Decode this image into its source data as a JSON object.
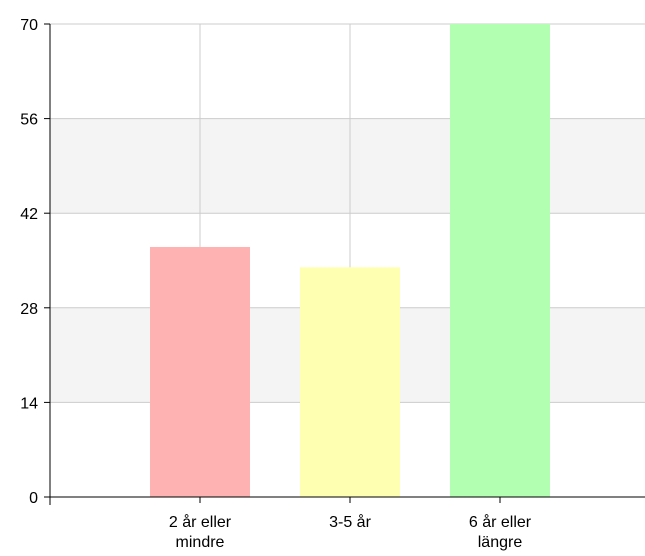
{
  "chart_data": {
    "type": "bar",
    "title": "",
    "xlabel": "",
    "ylabel": "",
    "categories": [
      [
        "2 år eller",
        "mindre"
      ],
      [
        "3-5 år"
      ],
      [
        "6 år eller",
        "längre"
      ]
    ],
    "values": [
      37,
      34,
      70
    ],
    "colors": [
      "#ffb2b2",
      "#ffffb2",
      "#b2ffb2"
    ],
    "ylim": [
      0,
      70
    ],
    "yticks": [
      "0",
      "14",
      "28",
      "42",
      "56",
      "70"
    ],
    "grid": true,
    "band_color": "#f4f4f4",
    "grid_color": "#cccccc"
  }
}
